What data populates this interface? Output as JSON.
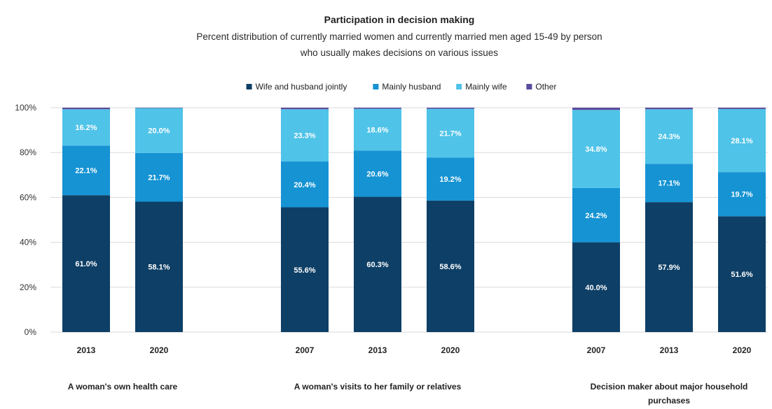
{
  "chart_data": {
    "type": "bar",
    "stacked": true,
    "title": "Participation in decision making",
    "subtitle_lines": [
      "Percent distribution of currently married women and currently married men aged 15-49 by person",
      "who usually makes decisions on various issues"
    ],
    "ylim": [
      0,
      100
    ],
    "yticks": [
      "0%",
      "20%",
      "40%",
      "60%",
      "80%",
      "100%"
    ],
    "grid": true,
    "legend_position": "top",
    "series": [
      {
        "name": "Wife and husband jointly",
        "color": "#0e3f66"
      },
      {
        "name": "Mainly husband",
        "color": "#1593d3"
      },
      {
        "name": "Mainly wife",
        "color": "#4fc3e8"
      },
      {
        "name": "Other",
        "color": "#5b4b9c"
      }
    ],
    "groups": [
      {
        "label_lines": [
          "A woman's own health care"
        ],
        "bars": [
          {
            "year": "2013",
            "values": [
              61.0,
              22.1,
              16.2,
              0.7
            ],
            "labels": [
              "61.0%",
              "22.1%",
              "16.2%",
              ""
            ]
          },
          {
            "year": "2020",
            "values": [
              58.1,
              21.7,
              20.0,
              0.2
            ],
            "labels": [
              "58.1%",
              "21.7%",
              "20.0%",
              ""
            ]
          }
        ]
      },
      {
        "label_lines": [
          "A woman's visits to her family or relatives"
        ],
        "bars": [
          {
            "year": "2007",
            "values": [
              55.6,
              20.4,
              23.3,
              0.7
            ],
            "labels": [
              "55.6%",
              "20.4%",
              "23.3%",
              ""
            ]
          },
          {
            "year": "2013",
            "values": [
              60.3,
              20.6,
              18.6,
              0.5
            ],
            "labels": [
              "60.3%",
              "20.6%",
              "18.6%",
              ""
            ]
          },
          {
            "year": "2020",
            "values": [
              58.6,
              19.2,
              21.7,
              0.5
            ],
            "labels": [
              "58.6%",
              "19.2%",
              "21.7%",
              ""
            ]
          }
        ]
      },
      {
        "label_lines": [
          "Decision maker about  major household",
          "purchases"
        ],
        "bars": [
          {
            "year": "2007",
            "values": [
              40.0,
              24.2,
              34.8,
              1.0
            ],
            "labels": [
              "40.0%",
              "24.2%",
              "34.8%",
              ""
            ]
          },
          {
            "year": "2013",
            "values": [
              57.9,
              17.1,
              24.3,
              0.7
            ],
            "labels": [
              "57.9%",
              "17.1%",
              "24.3%",
              ""
            ]
          },
          {
            "year": "2020",
            "values": [
              51.6,
              19.7,
              28.1,
              0.6
            ],
            "labels": [
              "51.6%",
              "19.7%",
              "28.1%",
              ""
            ]
          }
        ]
      }
    ]
  }
}
